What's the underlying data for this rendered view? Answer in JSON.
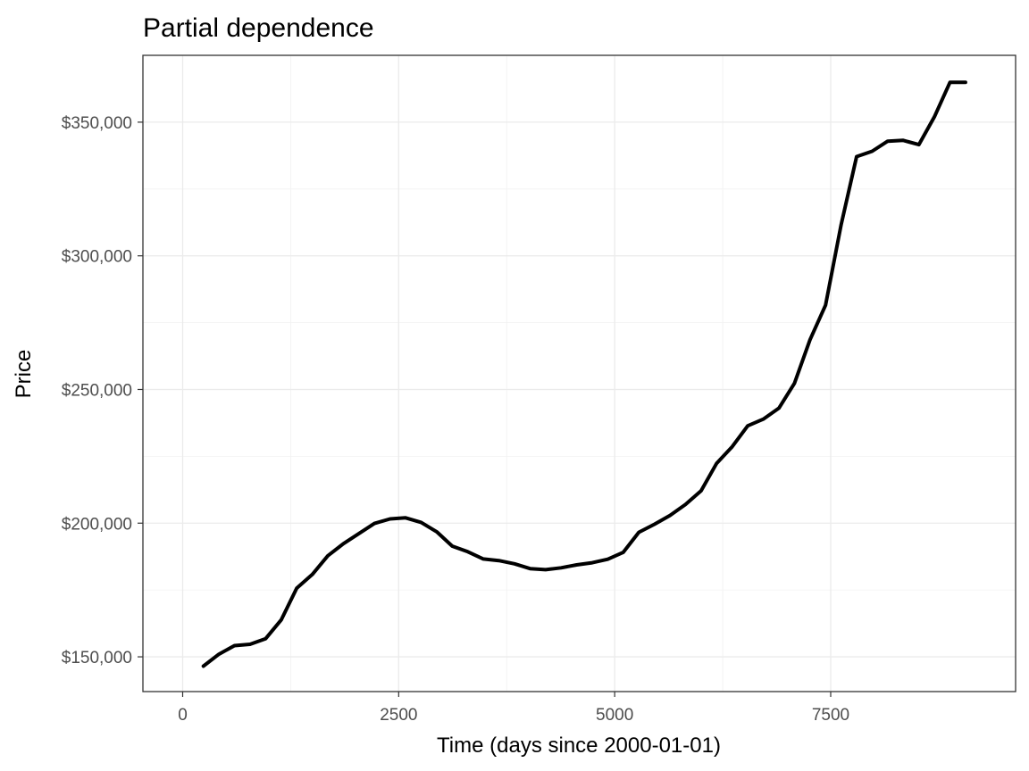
{
  "chart_data": {
    "type": "line",
    "title": "Partial dependence",
    "xlabel": "Time (days since 2000-01-01)",
    "ylabel": "Price",
    "xlim": [
      -460,
      9640
    ],
    "ylim": [
      137000,
      375000
    ],
    "x_ticks": [
      0,
      2500,
      5000,
      7500
    ],
    "x_tick_labels": [
      "0",
      "2500",
      "5000",
      "7500"
    ],
    "y_ticks": [
      150000,
      200000,
      250000,
      300000,
      350000
    ],
    "y_tick_labels": [
      "$150,000",
      "$200,000",
      "$250,000",
      "$300,000",
      "$350,000"
    ],
    "grid": true,
    "legend": "none",
    "colors": {
      "line": "#000000",
      "grid": "#ebebeb",
      "panel_border": "#333333",
      "tick_label": "#4d4d4d"
    },
    "series": [
      {
        "x": [
          240,
          420,
          600,
          780,
          960,
          1140,
          1320,
          1500,
          1680,
          1860,
          2040,
          2220,
          2400,
          2580,
          2760,
          2940,
          3120,
          3300,
          3480,
          3660,
          3840,
          4020,
          4200,
          4380,
          4560,
          4740,
          4920,
          5100,
          5280,
          5460,
          5640,
          5820,
          6000,
          6180,
          6360,
          6540,
          6720,
          6900,
          7080,
          7260,
          7440,
          7620,
          7800,
          7980,
          8160,
          8340,
          8520,
          8700,
          8880,
          9060
        ],
        "values": [
          146500,
          151000,
          154200,
          154700,
          156800,
          163800,
          175700,
          180800,
          187800,
          192300,
          196100,
          199900,
          201600,
          202000,
          200300,
          196800,
          191400,
          189300,
          186600,
          186000,
          184800,
          183000,
          182600,
          183300,
          184400,
          185200,
          186500,
          189100,
          196600,
          199600,
          202900,
          207000,
          212100,
          222400,
          228600,
          236400,
          238900,
          243000,
          252300,
          268600,
          281500,
          311500,
          337100,
          339100,
          342900,
          343200,
          341600,
          352000,
          364900,
          364900
        ]
      }
    ]
  }
}
